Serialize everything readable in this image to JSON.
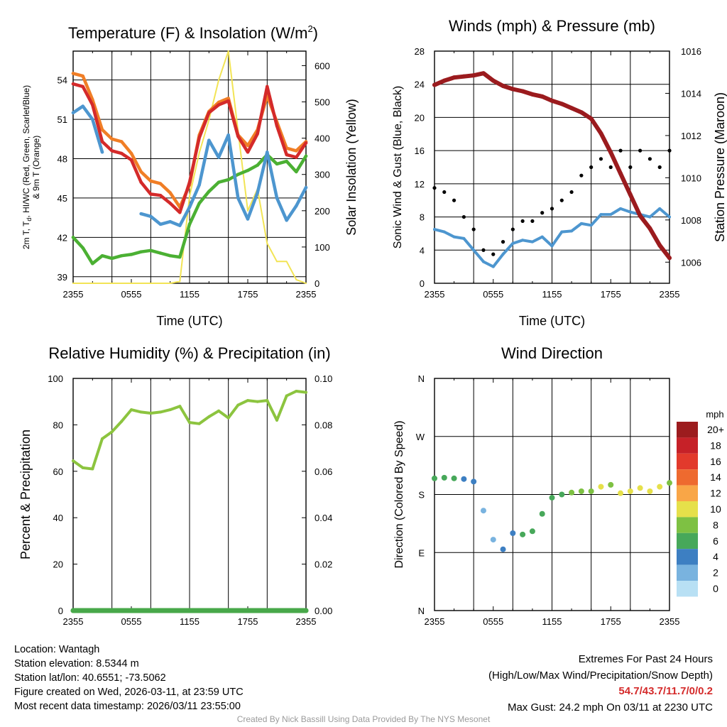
{
  "chart_data": [
    {
      "type": "line",
      "title": "Temperature (F) & Insolation (W/m2)",
      "title_main": "Temperature (F) & Insolation (W/m",
      "title_sup": "2",
      "title_end": ")",
      "xlabel": "Time (UTC)",
      "ylabel_line1": "2m T, T",
      "ylabel_sub": "d",
      "ylabel_line1b": ", HI/WC (Red, Green, Scarlet/Blue)",
      "ylabel_line2": "& 9m T (Orange)",
      "y2label": "Solar Insolation (Yellow)",
      "x_ticks": [
        "2355",
        "0555",
        "1155",
        "1755",
        "2355"
      ],
      "ylim": [
        38.5,
        56.2
      ],
      "y_ticks": [
        39,
        42,
        45,
        48,
        51,
        54
      ],
      "y2lim": [
        0,
        640
      ],
      "y2_ticks": [
        0,
        100,
        200,
        300,
        400,
        500,
        600
      ],
      "x_hours": [
        0,
        1,
        2,
        3,
        4,
        5,
        6,
        7,
        8,
        9,
        10,
        11,
        12,
        13,
        14,
        15,
        16,
        17,
        18,
        19,
        20,
        21,
        22,
        23,
        24
      ],
      "series": [
        {
          "name": "9m T (Orange)",
          "color": "#f07e26",
          "values": [
            54.5,
            54.3,
            52.5,
            50.2,
            49.5,
            49.3,
            48.4,
            47.0,
            46.3,
            46.1,
            45.4,
            44.3,
            46.0,
            49.8,
            51.6,
            52.3,
            52.6,
            49.8,
            49.0,
            50.2,
            52.8,
            50.8,
            48.8,
            48.6,
            49.3
          ]
        },
        {
          "name": "2m T (Red)",
          "color": "#d42a2a",
          "values": [
            53.7,
            53.5,
            52.1,
            49.3,
            48.6,
            48.4,
            47.9,
            46.2,
            45.3,
            45.2,
            44.6,
            43.9,
            46.2,
            49.6,
            51.5,
            52.1,
            52.4,
            49.7,
            48.5,
            49.9,
            53.5,
            50.5,
            48.3,
            48.1,
            49.2
          ]
        },
        {
          "name": "Td (Green)",
          "color": "#4bb033",
          "values": [
            42.0,
            41.2,
            40.0,
            40.6,
            40.4,
            40.6,
            40.7,
            40.9,
            41.0,
            40.8,
            40.6,
            40.5,
            43.0,
            44.6,
            45.5,
            46.2,
            46.4,
            46.8,
            47.1,
            47.5,
            48.3,
            47.6,
            47.8,
            47.0,
            48.2
          ]
        },
        {
          "name": "HI/WC (Scarlet/Blue)",
          "color": "#4d96cf",
          "values": [
            51.5,
            52.0,
            51.0,
            48.5,
            null,
            null,
            null,
            43.8,
            43.6,
            43.0,
            43.2,
            42.9,
            44.3,
            46.0,
            49.4,
            48.1,
            49.8,
            45.0,
            43.4,
            45.4,
            48.5,
            45.0,
            43.3,
            44.4,
            45.8
          ]
        },
        {
          "name": "Solar Insolation (Yellow)",
          "color": "#f2e455",
          "axis": "y2",
          "values": [
            0,
            0,
            0,
            0,
            0,
            0,
            0,
            0,
            0,
            0,
            0,
            5,
            240,
            360,
            450,
            560,
            640,
            420,
            200,
            260,
            110,
            60,
            60,
            10,
            0
          ]
        }
      ]
    },
    {
      "type": "line",
      "title": "Winds (mph) & Pressure (mb)",
      "xlabel": "Time (UTC)",
      "ylabel": "Sonic Wind & Gust (Blue, Black)",
      "y2label": "Station Pressure (Maroon)",
      "x_ticks": [
        "2355",
        "0555",
        "1155",
        "1755",
        "2355"
      ],
      "ylim": [
        0,
        28
      ],
      "y_ticks": [
        0,
        4,
        8,
        12,
        16,
        20,
        24,
        28
      ],
      "y2lim": [
        1005,
        1016
      ],
      "y2_ticks": [
        1006,
        1008,
        1010,
        1012,
        1014,
        1016
      ],
      "x_hours": [
        0,
        1,
        2,
        3,
        4,
        5,
        6,
        7,
        8,
        9,
        10,
        11,
        12,
        13,
        14,
        15,
        16,
        17,
        18,
        19,
        20,
        21,
        22,
        23,
        24
      ],
      "series": [
        {
          "name": "Sonic Wind (Blue)",
          "color": "#4d96cf",
          "values": [
            6.5,
            6.2,
            5.6,
            5.4,
            4.0,
            2.6,
            2.0,
            3.5,
            4.8,
            5.2,
            5.0,
            5.6,
            4.5,
            6.2,
            6.3,
            7.2,
            7.0,
            8.3,
            8.3,
            9.0,
            8.6,
            8.3,
            8.0,
            9.0,
            8.0
          ]
        },
        {
          "name": "Gust (Black)",
          "color": "#000000",
          "style": "dots",
          "values": [
            11.5,
            11.0,
            10.0,
            8.0,
            6.5,
            4.0,
            3.5,
            5.0,
            6.5,
            7.5,
            7.5,
            8.5,
            9.0,
            10.0,
            11.0,
            13.0,
            14.0,
            15.0,
            14.0,
            16.0,
            14.0,
            16.0,
            15.0,
            14.0,
            16.0
          ]
        },
        {
          "name": "Station Pressure (Maroon)",
          "color": "#9b1b1e",
          "axis": "y2",
          "values": [
            1014.4,
            1014.6,
            1014.75,
            1014.8,
            1014.85,
            1014.95,
            1014.6,
            1014.35,
            1014.2,
            1014.1,
            1013.95,
            1013.85,
            1013.65,
            1013.5,
            1013.3,
            1013.1,
            1012.8,
            1012.1,
            1011.2,
            1010.2,
            1009.2,
            1008.2,
            1007.6,
            1006.8,
            1006.2
          ]
        }
      ]
    },
    {
      "type": "line",
      "title": "Relative Humidity (%) & Precipitation (in)",
      "ylabel": "Percent & Precipitation",
      "x_ticks": [
        "2355",
        "0555",
        "1155",
        "1755",
        "2355"
      ],
      "ylim": [
        0,
        100
      ],
      "y_ticks": [
        0,
        20,
        40,
        60,
        80,
        100
      ],
      "y2lim": [
        0,
        0.1
      ],
      "y2_ticks": [
        "0.00",
        "0.02",
        "0.04",
        "0.06",
        "0.08",
        "0.10"
      ],
      "x_hours": [
        0,
        1,
        2,
        3,
        4,
        5,
        6,
        7,
        8,
        9,
        10,
        11,
        12,
        13,
        14,
        15,
        16,
        17,
        18,
        19,
        20,
        21,
        22,
        23,
        24
      ],
      "series": [
        {
          "name": "Relative Humidity",
          "color": "#8cc43f",
          "values": [
            64.5,
            61.5,
            61.0,
            74.0,
            77.0,
            81.5,
            86.5,
            85.5,
            85.0,
            85.5,
            86.5,
            88.0,
            81.0,
            80.5,
            83.5,
            86.0,
            83.0,
            88.5,
            90.5,
            90.0,
            90.5,
            82.0,
            92.5,
            94.5,
            94.0
          ]
        },
        {
          "name": "Precipitation",
          "color": "#48a84a",
          "axis": "y2",
          "values": [
            0,
            0,
            0,
            0,
            0,
            0,
            0,
            0,
            0,
            0,
            0,
            0,
            0,
            0,
            0,
            0,
            0,
            0,
            0,
            0,
            0,
            0,
            0,
            0,
            0
          ]
        }
      ]
    },
    {
      "type": "scatter",
      "title": "Wind Direction",
      "ylabel": "Direction (Colored By Speed)",
      "x_ticks": [
        "2355",
        "0555",
        "1155",
        "1755",
        "2355"
      ],
      "y_ticks": [
        "N",
        "E",
        "S",
        "W",
        "N"
      ],
      "ylim_degrees": [
        0,
        360
      ],
      "x_hours": [
        0,
        1,
        2,
        3,
        4,
        5,
        6,
        7,
        8,
        9,
        10,
        11,
        12,
        13,
        14,
        15,
        16,
        17,
        18,
        19,
        20,
        21,
        22,
        23,
        24
      ],
      "direction_degrees": [
        205,
        206,
        205,
        204,
        200,
        155,
        110,
        95,
        120,
        118,
        123,
        150,
        175,
        180,
        183,
        185,
        185,
        192,
        195,
        182,
        185,
        190,
        185,
        192,
        198
      ],
      "speed_mph": [
        6,
        6,
        5,
        4,
        3,
        2,
        2,
        3,
        4,
        5,
        5,
        5,
        6,
        6,
        7,
        8,
        8,
        9,
        8,
        9,
        9,
        10,
        9,
        10,
        8
      ],
      "legend": {
        "title": "mph",
        "labels": [
          "20+",
          "18",
          "16",
          "14",
          "12",
          "10",
          "8",
          "6",
          "4",
          "2",
          "0"
        ],
        "colors": [
          "#9c1c1e",
          "#c62128",
          "#e23a2c",
          "#ee6a2f",
          "#f9a647",
          "#e6e04a",
          "#7ec143",
          "#47a85a",
          "#3d7fc2",
          "#79b3df",
          "#b8e0f4"
        ]
      }
    }
  ],
  "info": {
    "location": "Location: Wantagh",
    "elevation": "Station elevation: 8.5344 m",
    "latlon": "Station lat/lon: 40.6551; -73.5062",
    "created": "Figure created on Wed, 2026-03-11, at 23:59 UTC",
    "recent": "Most recent data timestamp: 2026/03/11 23:55:00"
  },
  "extremes": {
    "header": "Extremes For Past 24 Hours",
    "subheader": "(High/Low/Max Wind/Precipitation/Snow Depth)",
    "values": "54.7/43.7/11.7/0/0.2",
    "max_gust": "Max Gust: 24.2 mph On 03/11 at 2230 UTC"
  },
  "credit": "Created By Nick Bassill Using Data Provided By The NYS Mesonet"
}
